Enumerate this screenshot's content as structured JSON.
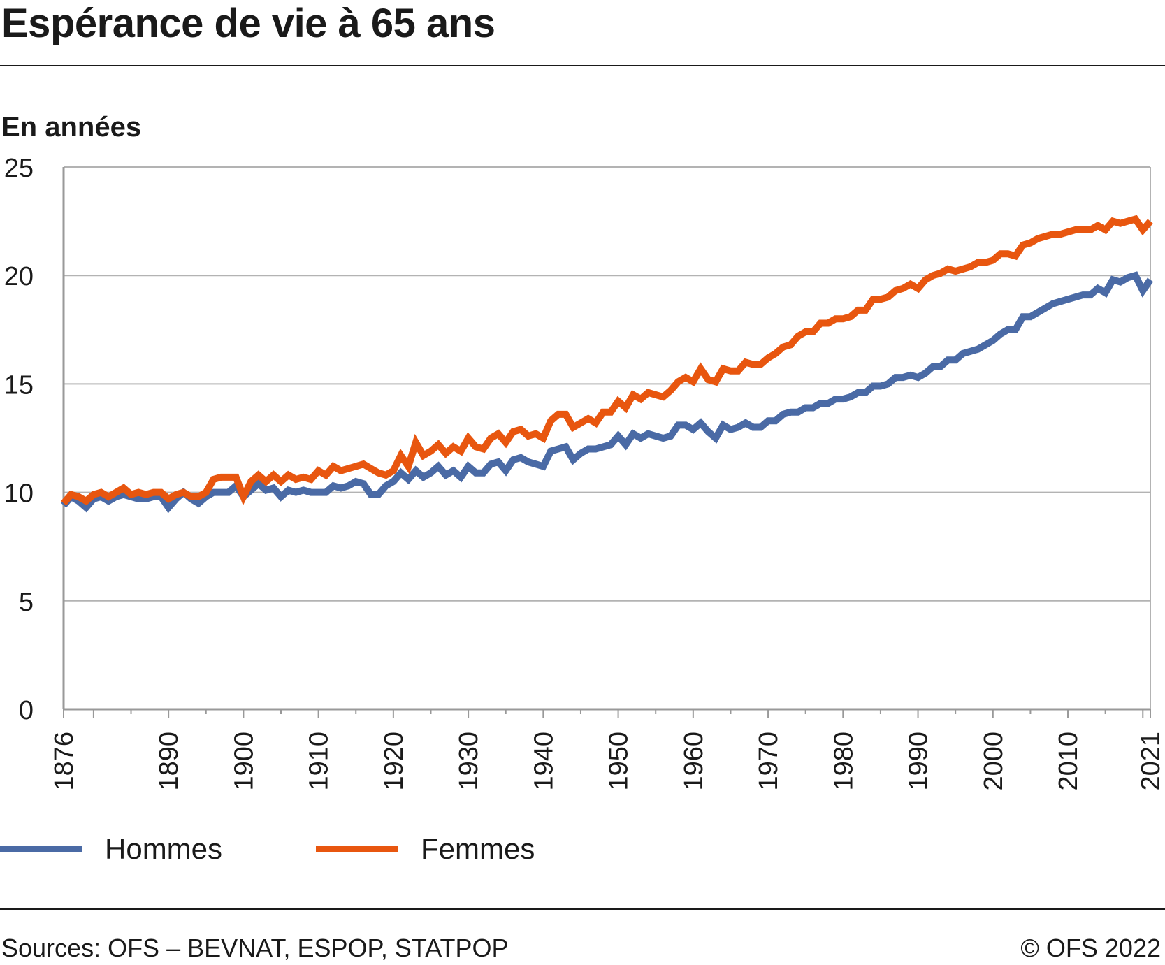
{
  "title": "Espérance de vie à 65 ans",
  "unit_label": "En années",
  "sources": "Sources: OFS – BEVNAT, ESPOP, STATPOP",
  "copyright": "© OFS 2022",
  "colors": {
    "hommes": "#4a6aa5",
    "femmes": "#e8560f",
    "grid": "#b3b3b3",
    "axis": "#999999"
  },
  "chart_data": {
    "type": "line",
    "title": "Espérance de vie à 65 ans",
    "ylabel": "En années",
    "xlabel": "",
    "xlim": [
      1876,
      2021
    ],
    "ylim": [
      0,
      25
    ],
    "yticks": [
      0,
      5,
      10,
      15,
      20,
      25
    ],
    "xtick_labels": [
      1876,
      1890,
      1900,
      1910,
      1920,
      1930,
      1940,
      1950,
      1960,
      1970,
      1980,
      1990,
      2000,
      2010,
      2021
    ],
    "grid": true,
    "legend_position": "bottom",
    "series": [
      {
        "name": "Hommes",
        "points": [
          [
            1876,
            9.4
          ],
          [
            1877,
            9.8
          ],
          [
            1878,
            9.6
          ],
          [
            1879,
            9.3
          ],
          [
            1880,
            9.7
          ],
          [
            1881,
            9.8
          ],
          [
            1882,
            9.6
          ],
          [
            1883,
            9.8
          ],
          [
            1884,
            9.9
          ],
          [
            1885,
            9.8
          ],
          [
            1886,
            9.7
          ],
          [
            1887,
            9.7
          ],
          [
            1888,
            9.8
          ],
          [
            1889,
            9.8
          ],
          [
            1890,
            9.3
          ],
          [
            1891,
            9.7
          ],
          [
            1892,
            10.0
          ],
          [
            1893,
            9.7
          ],
          [
            1894,
            9.5
          ],
          [
            1895,
            9.8
          ],
          [
            1896,
            10.0
          ],
          [
            1897,
            10.0
          ],
          [
            1898,
            10.0
          ],
          [
            1899,
            10.3
          ],
          [
            1900,
            9.8
          ],
          [
            1901,
            10.1
          ],
          [
            1902,
            10.4
          ],
          [
            1903,
            10.1
          ],
          [
            1904,
            10.2
          ],
          [
            1905,
            9.8
          ],
          [
            1906,
            10.1
          ],
          [
            1907,
            10.0
          ],
          [
            1908,
            10.1
          ],
          [
            1909,
            10.0
          ],
          [
            1910,
            10.0
          ],
          [
            1911,
            10.0
          ],
          [
            1912,
            10.3
          ],
          [
            1913,
            10.2
          ],
          [
            1914,
            10.3
          ],
          [
            1915,
            10.5
          ],
          [
            1916,
            10.4
          ],
          [
            1917,
            9.9
          ],
          [
            1918,
            9.9
          ],
          [
            1919,
            10.3
          ],
          [
            1920,
            10.5
          ],
          [
            1921,
            10.9
          ],
          [
            1922,
            10.6
          ],
          [
            1923,
            11.0
          ],
          [
            1924,
            10.7
          ],
          [
            1925,
            10.9
          ],
          [
            1926,
            11.2
          ],
          [
            1927,
            10.8
          ],
          [
            1928,
            11.0
          ],
          [
            1929,
            10.7
          ],
          [
            1930,
            11.2
          ],
          [
            1931,
            10.9
          ],
          [
            1932,
            10.9
          ],
          [
            1933,
            11.3
          ],
          [
            1934,
            11.4
          ],
          [
            1935,
            11.0
          ],
          [
            1936,
            11.5
          ],
          [
            1937,
            11.6
          ],
          [
            1938,
            11.4
          ],
          [
            1939,
            11.3
          ],
          [
            1940,
            11.2
          ],
          [
            1941,
            11.9
          ],
          [
            1942,
            12.0
          ],
          [
            1943,
            12.1
          ],
          [
            1944,
            11.5
          ],
          [
            1945,
            11.8
          ],
          [
            1946,
            12.0
          ],
          [
            1947,
            12.0
          ],
          [
            1948,
            12.1
          ],
          [
            1949,
            12.2
          ],
          [
            1950,
            12.6
          ],
          [
            1951,
            12.2
          ],
          [
            1952,
            12.7
          ],
          [
            1953,
            12.5
          ],
          [
            1954,
            12.7
          ],
          [
            1955,
            12.6
          ],
          [
            1956,
            12.5
          ],
          [
            1957,
            12.6
          ],
          [
            1958,
            13.1
          ],
          [
            1959,
            13.1
          ],
          [
            1960,
            12.9
          ],
          [
            1961,
            13.2
          ],
          [
            1962,
            12.8
          ],
          [
            1963,
            12.5
          ],
          [
            1964,
            13.1
          ],
          [
            1965,
            12.9
          ],
          [
            1966,
            13.0
          ],
          [
            1967,
            13.2
          ],
          [
            1968,
            13.0
          ],
          [
            1969,
            13.0
          ],
          [
            1970,
            13.3
          ],
          [
            1971,
            13.3
          ],
          [
            1972,
            13.6
          ],
          [
            1973,
            13.7
          ],
          [
            1974,
            13.7
          ],
          [
            1975,
            13.9
          ],
          [
            1976,
            13.9
          ],
          [
            1977,
            14.1
          ],
          [
            1978,
            14.1
          ],
          [
            1979,
            14.3
          ],
          [
            1980,
            14.3
          ],
          [
            1981,
            14.4
          ],
          [
            1982,
            14.6
          ],
          [
            1983,
            14.6
          ],
          [
            1984,
            14.9
          ],
          [
            1985,
            14.9
          ],
          [
            1986,
            15.0
          ],
          [
            1987,
            15.3
          ],
          [
            1988,
            15.3
          ],
          [
            1989,
            15.4
          ],
          [
            1990,
            15.3
          ],
          [
            1991,
            15.5
          ],
          [
            1992,
            15.8
          ],
          [
            1993,
            15.8
          ],
          [
            1994,
            16.1
          ],
          [
            1995,
            16.1
          ],
          [
            1996,
            16.4
          ],
          [
            1997,
            16.5
          ],
          [
            1998,
            16.6
          ],
          [
            1999,
            16.8
          ],
          [
            2000,
            17.0
          ],
          [
            2001,
            17.3
          ],
          [
            2002,
            17.5
          ],
          [
            2003,
            17.5
          ],
          [
            2004,
            18.1
          ],
          [
            2005,
            18.1
          ],
          [
            2006,
            18.3
          ],
          [
            2007,
            18.5
          ],
          [
            2008,
            18.7
          ],
          [
            2009,
            18.8
          ],
          [
            2010,
            18.9
          ],
          [
            2011,
            19.0
          ],
          [
            2012,
            19.1
          ],
          [
            2013,
            19.1
          ],
          [
            2014,
            19.4
          ],
          [
            2015,
            19.2
          ],
          [
            2016,
            19.8
          ],
          [
            2017,
            19.7
          ],
          [
            2018,
            19.9
          ],
          [
            2019,
            20.0
          ],
          [
            2020,
            19.3
          ],
          [
            2021,
            19.8
          ]
        ]
      },
      {
        "name": "Femmes",
        "points": [
          [
            1876,
            9.5
          ],
          [
            1877,
            9.9
          ],
          [
            1878,
            9.8
          ],
          [
            1879,
            9.6
          ],
          [
            1880,
            9.9
          ],
          [
            1881,
            10.0
          ],
          [
            1882,
            9.8
          ],
          [
            1883,
            10.0
          ],
          [
            1884,
            10.2
          ],
          [
            1885,
            9.9
          ],
          [
            1886,
            10.0
          ],
          [
            1887,
            9.9
          ],
          [
            1888,
            10.0
          ],
          [
            1889,
            10.0
          ],
          [
            1890,
            9.7
          ],
          [
            1891,
            9.9
          ],
          [
            1892,
            10.0
          ],
          [
            1893,
            9.8
          ],
          [
            1894,
            9.8
          ],
          [
            1895,
            10.0
          ],
          [
            1896,
            10.6
          ],
          [
            1897,
            10.7
          ],
          [
            1898,
            10.7
          ],
          [
            1899,
            10.7
          ],
          [
            1900,
            9.8
          ],
          [
            1901,
            10.5
          ],
          [
            1902,
            10.8
          ],
          [
            1903,
            10.5
          ],
          [
            1904,
            10.8
          ],
          [
            1905,
            10.5
          ],
          [
            1906,
            10.8
          ],
          [
            1907,
            10.6
          ],
          [
            1908,
            10.7
          ],
          [
            1909,
            10.6
          ],
          [
            1910,
            11.0
          ],
          [
            1911,
            10.8
          ],
          [
            1912,
            11.2
          ],
          [
            1913,
            11.0
          ],
          [
            1914,
            11.1
          ],
          [
            1915,
            11.2
          ],
          [
            1916,
            11.3
          ],
          [
            1917,
            11.1
          ],
          [
            1918,
            10.9
          ],
          [
            1919,
            10.8
          ],
          [
            1920,
            11.0
          ],
          [
            1921,
            11.7
          ],
          [
            1922,
            11.2
          ],
          [
            1923,
            12.3
          ],
          [
            1924,
            11.7
          ],
          [
            1925,
            11.9
          ],
          [
            1926,
            12.2
          ],
          [
            1927,
            11.8
          ],
          [
            1928,
            12.1
          ],
          [
            1929,
            11.9
          ],
          [
            1930,
            12.5
          ],
          [
            1931,
            12.1
          ],
          [
            1932,
            12.0
          ],
          [
            1933,
            12.5
          ],
          [
            1934,
            12.7
          ],
          [
            1935,
            12.3
          ],
          [
            1936,
            12.8
          ],
          [
            1937,
            12.9
          ],
          [
            1938,
            12.6
          ],
          [
            1939,
            12.7
          ],
          [
            1940,
            12.5
          ],
          [
            1941,
            13.3
          ],
          [
            1942,
            13.6
          ],
          [
            1943,
            13.6
          ],
          [
            1944,
            13.0
          ],
          [
            1945,
            13.2
          ],
          [
            1946,
            13.4
          ],
          [
            1947,
            13.2
          ],
          [
            1948,
            13.7
          ],
          [
            1949,
            13.7
          ],
          [
            1950,
            14.2
          ],
          [
            1951,
            13.9
          ],
          [
            1952,
            14.5
          ],
          [
            1953,
            14.3
          ],
          [
            1954,
            14.6
          ],
          [
            1955,
            14.5
          ],
          [
            1956,
            14.4
          ],
          [
            1957,
            14.7
          ],
          [
            1958,
            15.1
          ],
          [
            1959,
            15.3
          ],
          [
            1960,
            15.1
          ],
          [
            1961,
            15.7
          ],
          [
            1962,
            15.2
          ],
          [
            1963,
            15.1
          ],
          [
            1964,
            15.7
          ],
          [
            1965,
            15.6
          ],
          [
            1966,
            15.6
          ],
          [
            1967,
            16.0
          ],
          [
            1968,
            15.9
          ],
          [
            1969,
            15.9
          ],
          [
            1970,
            16.2
          ],
          [
            1971,
            16.4
          ],
          [
            1972,
            16.7
          ],
          [
            1973,
            16.8
          ],
          [
            1974,
            17.2
          ],
          [
            1975,
            17.4
          ],
          [
            1976,
            17.4
          ],
          [
            1977,
            17.8
          ],
          [
            1978,
            17.8
          ],
          [
            1979,
            18.0
          ],
          [
            1980,
            18.0
          ],
          [
            1981,
            18.1
          ],
          [
            1982,
            18.4
          ],
          [
            1983,
            18.4
          ],
          [
            1984,
            18.9
          ],
          [
            1985,
            18.9
          ],
          [
            1986,
            19.0
          ],
          [
            1987,
            19.3
          ],
          [
            1988,
            19.4
          ],
          [
            1989,
            19.6
          ],
          [
            1990,
            19.4
          ],
          [
            1991,
            19.8
          ],
          [
            1992,
            20.0
          ],
          [
            1993,
            20.1
          ],
          [
            1994,
            20.3
          ],
          [
            1995,
            20.2
          ],
          [
            1996,
            20.3
          ],
          [
            1997,
            20.4
          ],
          [
            1998,
            20.6
          ],
          [
            1999,
            20.6
          ],
          [
            2000,
            20.7
          ],
          [
            2001,
            21.0
          ],
          [
            2002,
            21.0
          ],
          [
            2003,
            20.9
          ],
          [
            2004,
            21.4
          ],
          [
            2005,
            21.5
          ],
          [
            2006,
            21.7
          ],
          [
            2007,
            21.8
          ],
          [
            2008,
            21.9
          ],
          [
            2009,
            21.9
          ],
          [
            2010,
            22.0
          ],
          [
            2011,
            22.1
          ],
          [
            2012,
            22.1
          ],
          [
            2013,
            22.1
          ],
          [
            2014,
            22.3
          ],
          [
            2015,
            22.1
          ],
          [
            2016,
            22.5
          ],
          [
            2017,
            22.4
          ],
          [
            2018,
            22.5
          ],
          [
            2019,
            22.6
          ],
          [
            2020,
            22.1
          ],
          [
            2021,
            22.5
          ]
        ]
      }
    ]
  }
}
